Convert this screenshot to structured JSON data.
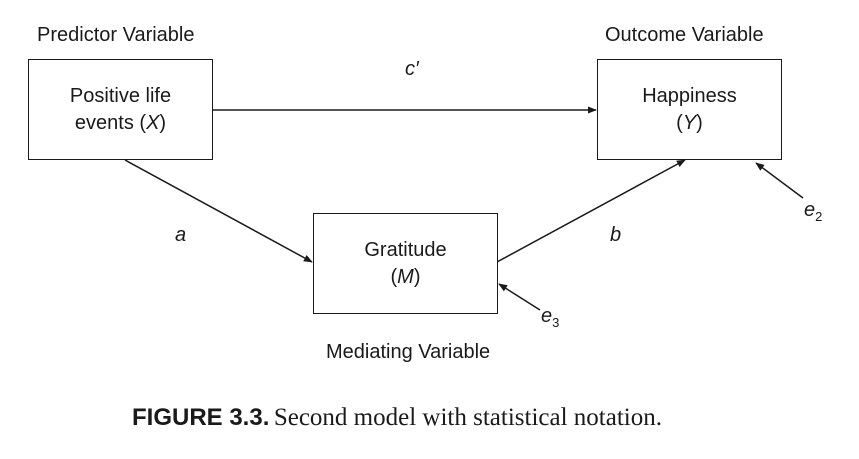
{
  "headings": {
    "predictor": "Predictor Variable",
    "outcome": "Outcome Variable",
    "mediator": "Mediating Variable"
  },
  "nodes": {
    "x": {
      "line1": "Positive life",
      "line2_prefix": "events (",
      "symbol": "X",
      "line2_suffix": ")"
    },
    "y": {
      "line1": "Happiness",
      "line2_prefix": "(",
      "symbol": "Y",
      "line2_suffix": ")"
    },
    "m": {
      "line1": "Gratitude",
      "line2_prefix": "(",
      "symbol": "M",
      "line2_suffix": ")"
    }
  },
  "paths": {
    "c_prime": "c′",
    "a": "a",
    "b": "b"
  },
  "errors": {
    "e2": {
      "letter": "e",
      "sub": "2"
    },
    "e3": {
      "letter": "e",
      "sub": "3"
    }
  },
  "caption": {
    "label": "FIGURE 3.3.",
    "text": "Second model with statistical notation."
  }
}
